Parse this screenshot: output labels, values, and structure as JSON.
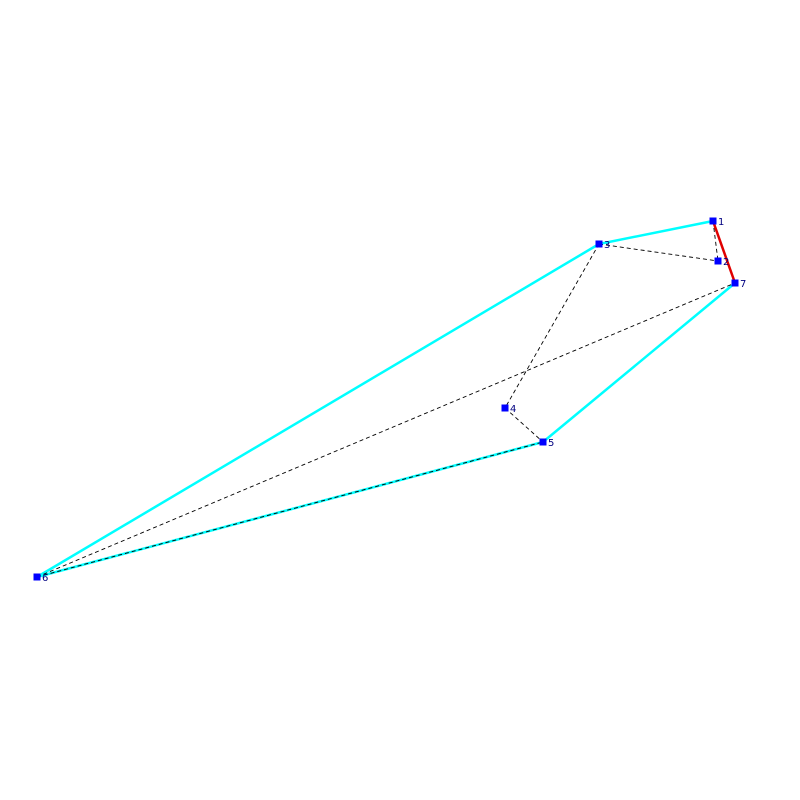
{
  "diagram": {
    "colors": {
      "background": "#ffffff",
      "hull_edge": "#00ffff",
      "highlight_edge": "#e00000",
      "dashed_edge": "#000000",
      "vertex": "#0000ff",
      "label": "#000080"
    },
    "vertices": [
      {
        "id": "1",
        "label": "1"
      },
      {
        "id": "2",
        "label": "2"
      },
      {
        "id": "3",
        "label": "3"
      },
      {
        "id": "4",
        "label": "4"
      },
      {
        "id": "5",
        "label": "5"
      },
      {
        "id": "6",
        "label": "6"
      },
      {
        "id": "7",
        "label": "7"
      }
    ],
    "hull_edges": [
      [
        "6",
        "3"
      ],
      [
        "3",
        "1"
      ],
      [
        "7",
        "5"
      ],
      [
        "5",
        "6"
      ]
    ],
    "highlight_edges": [
      [
        "1",
        "7"
      ]
    ],
    "dashed_edges": [
      [
        "1",
        "2"
      ],
      [
        "3",
        "2"
      ],
      [
        "3",
        "4"
      ],
      [
        "4",
        "5"
      ],
      [
        "6",
        "7"
      ],
      [
        "6",
        "5"
      ]
    ]
  }
}
